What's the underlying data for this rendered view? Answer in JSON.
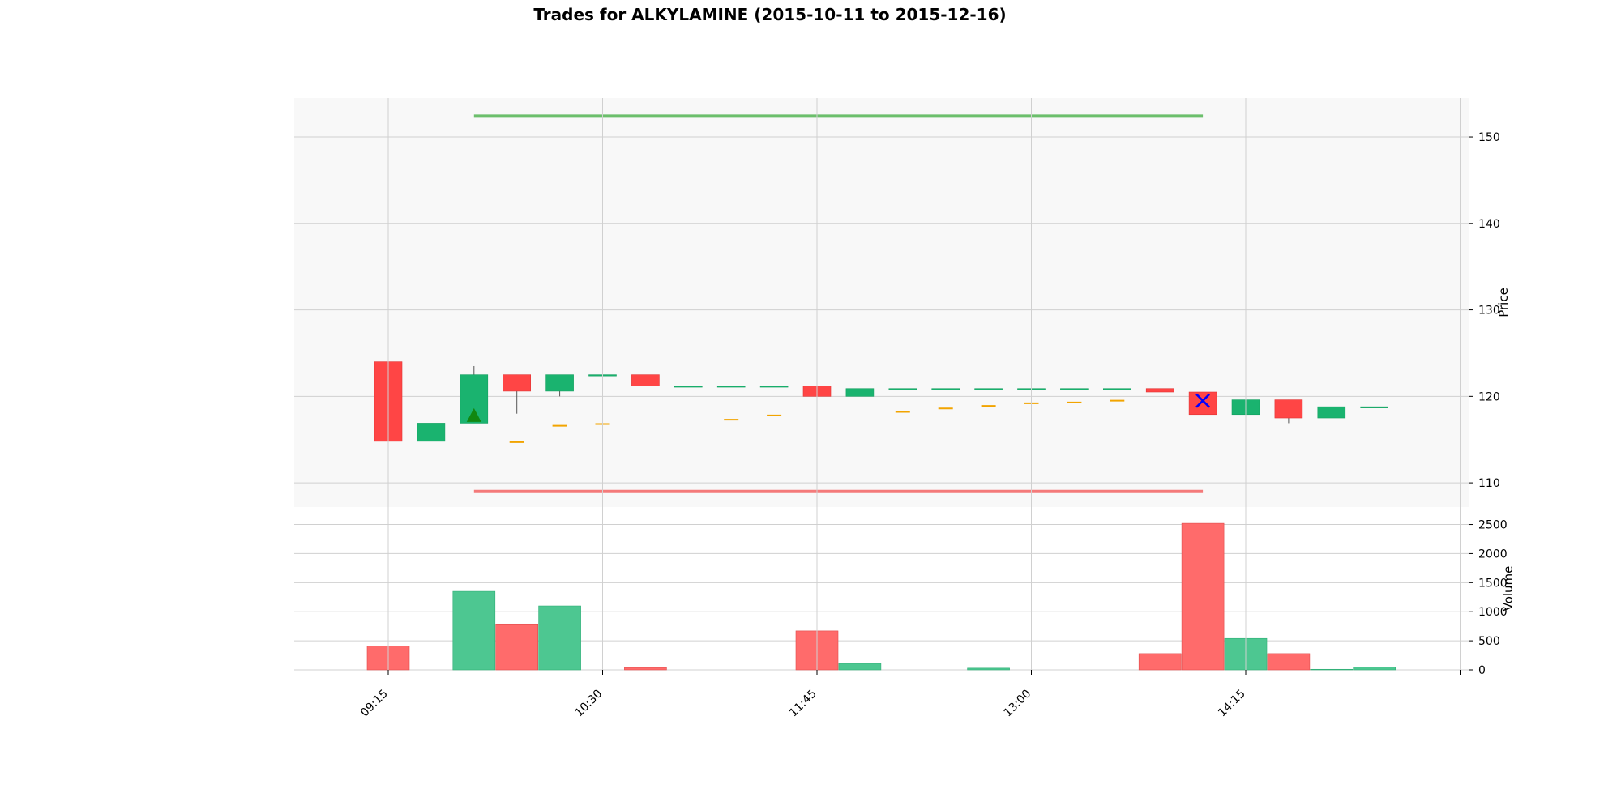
{
  "chart_data": {
    "type": "candlestick",
    "title": "Trades for ALKYLAMINE (2015-10-11 to 2015-12-16)",
    "price_axis": {
      "label": "Price",
      "ticks": [
        110,
        120,
        130,
        140,
        150
      ],
      "ylim": [
        107.2,
        154.5
      ]
    },
    "volume_axis": {
      "label": "Volume",
      "ticks": [
        0,
        500,
        1000,
        1500,
        2000,
        2500
      ],
      "ylim": [
        0,
        2800
      ]
    },
    "time_axis": {
      "tick_labels": [
        "09:15",
        "10:30",
        "11:45",
        "13:00",
        "14:15",
        ""
      ],
      "tick_index": [
        0,
        5,
        10,
        15,
        20,
        25
      ]
    },
    "colors": {
      "up": "#1ab36f",
      "down": "#ff4545",
      "volume_up": "#4dc791",
      "volume_down": "#ff6b6b",
      "target_line": "#6cbf6c",
      "stop_line": "#f47a7a",
      "trail": "#f2a400",
      "entry_marker": "#118811",
      "exit_marker": "#0000ff",
      "grid": "#d0d0d0",
      "panel_bg": "#f8f8f8"
    },
    "candles": [
      {
        "time": "09:15",
        "open": 124.0,
        "high": 124.0,
        "low": 114.3,
        "close": 114.8
      },
      {
        "time": "09:30",
        "open": 114.8,
        "high": 116.9,
        "low": 114.8,
        "close": 116.9
      },
      {
        "time": "09:45",
        "open": 116.9,
        "high": 123.5,
        "low": 116.9,
        "close": 122.5
      },
      {
        "time": "10:00",
        "open": 122.5,
        "high": 122.5,
        "low": 118.0,
        "close": 120.6
      },
      {
        "time": "10:15",
        "open": 120.6,
        "high": 122.5,
        "low": 120.0,
        "close": 122.5
      },
      {
        "time": "10:30",
        "open": 122.5,
        "high": 122.5,
        "low": 120.0,
        "close": 122.5
      },
      {
        "time": "10:45",
        "open": 122.5,
        "high": 122.5,
        "low": 121.2,
        "close": 121.2
      },
      {
        "time": "11:00",
        "open": 121.2,
        "high": 121.2,
        "low": 121.2,
        "close": 121.2
      },
      {
        "time": "11:15",
        "open": 121.2,
        "high": 121.2,
        "low": 121.2,
        "close": 121.2
      },
      {
        "time": "11:30",
        "open": 121.2,
        "high": 121.2,
        "low": 121.2,
        "close": 121.2
      },
      {
        "time": "11:45",
        "open": 121.2,
        "high": 121.2,
        "low": 120.0,
        "close": 120.0
      },
      {
        "time": "12:00",
        "open": 120.0,
        "high": 120.9,
        "low": 120.0,
        "close": 120.9
      },
      {
        "time": "12:15",
        "open": 120.9,
        "high": 120.9,
        "low": 120.9,
        "close": 120.9
      },
      {
        "time": "12:30",
        "open": 120.9,
        "high": 120.9,
        "low": 120.9,
        "close": 120.9
      },
      {
        "time": "12:45",
        "open": 120.9,
        "high": 120.9,
        "low": 120.9,
        "close": 120.9
      },
      {
        "time": "13:00",
        "open": 120.9,
        "high": 120.9,
        "low": 120.9,
        "close": 120.9
      },
      {
        "time": "13:15",
        "open": 120.9,
        "high": 120.9,
        "low": 120.9,
        "close": 120.9
      },
      {
        "time": "13:30",
        "open": 120.9,
        "high": 120.9,
        "low": 120.9,
        "close": 120.9
      },
      {
        "time": "13:45",
        "open": 120.9,
        "high": 120.9,
        "low": 120.5,
        "close": 120.5
      },
      {
        "time": "14:00",
        "open": 120.5,
        "high": 120.5,
        "low": 117.9,
        "close": 117.9
      },
      {
        "time": "14:15",
        "open": 117.9,
        "high": 119.6,
        "low": 117.2,
        "close": 119.6
      },
      {
        "time": "14:30",
        "open": 119.6,
        "high": 119.6,
        "low": 116.9,
        "close": 117.5
      },
      {
        "time": "14:45",
        "open": 117.5,
        "high": 118.8,
        "low": 117.5,
        "close": 118.8
      },
      {
        "time": "15:00",
        "open": 118.8,
        "high": 118.8,
        "low": 118.8,
        "close": 118.8
      }
    ],
    "volume": [
      410,
      0,
      1350,
      790,
      1100,
      0,
      40,
      0,
      0,
      0,
      670,
      110,
      0,
      0,
      30,
      0,
      0,
      0,
      280,
      2520,
      540,
      280,
      10,
      50
    ],
    "trail_levels": [
      {
        "index": 3,
        "price": 114.7
      },
      {
        "index": 4,
        "price": 116.6
      },
      {
        "index": 5,
        "price": 116.8
      },
      {
        "index": 8,
        "price": 117.3
      },
      {
        "index": 9,
        "price": 117.8
      },
      {
        "index": 12,
        "price": 118.2
      },
      {
        "index": 13,
        "price": 118.6
      },
      {
        "index": 14,
        "price": 118.9
      },
      {
        "index": 15,
        "price": 119.2
      },
      {
        "index": 16,
        "price": 119.3
      },
      {
        "index": 17,
        "price": 119.5
      }
    ],
    "target_line": {
      "price": 152.4,
      "from_index": 2,
      "to_index": 19
    },
    "stop_line": {
      "price": 109.0,
      "from_index": 2,
      "to_index": 19
    },
    "entry_marker": {
      "index": 2,
      "price": 117.8
    },
    "exit_marker": {
      "index": 19,
      "price": 119.5
    }
  }
}
